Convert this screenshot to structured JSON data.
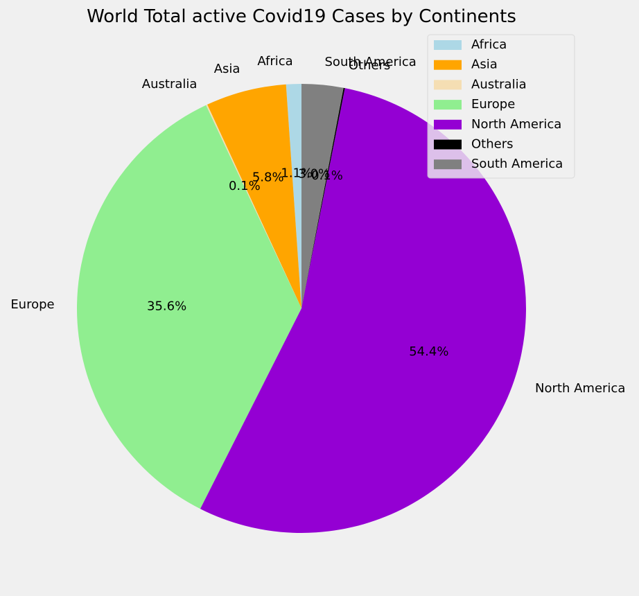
{
  "chart_data": {
    "type": "pie",
    "title": "World Total active Covid19 Cases by Continents",
    "start_angle_deg": 90,
    "direction": "counterclockwise",
    "legend_placement": "top-right",
    "slices": [
      {
        "label": "Africa",
        "value": 1.1,
        "pct_label": "1.1%",
        "color": "#add8e6"
      },
      {
        "label": "Asia",
        "value": 5.8,
        "pct_label": "5.8%",
        "color": "#ffa500"
      },
      {
        "label": "Australia",
        "value": 0.1,
        "pct_label": "0.1%",
        "color": "#f5deb3"
      },
      {
        "label": "Europe",
        "value": 35.6,
        "pct_label": "35.6%",
        "color": "#90ee90"
      },
      {
        "label": "North America",
        "value": 54.4,
        "pct_label": "54.4%",
        "color": "#9400d3"
      },
      {
        "label": "Others",
        "value": 0.1,
        "pct_label": "0.1%",
        "color": "#000000"
      },
      {
        "label": "South America",
        "value": 3.0,
        "pct_label": "3.0%",
        "color": "#808080"
      }
    ]
  }
}
